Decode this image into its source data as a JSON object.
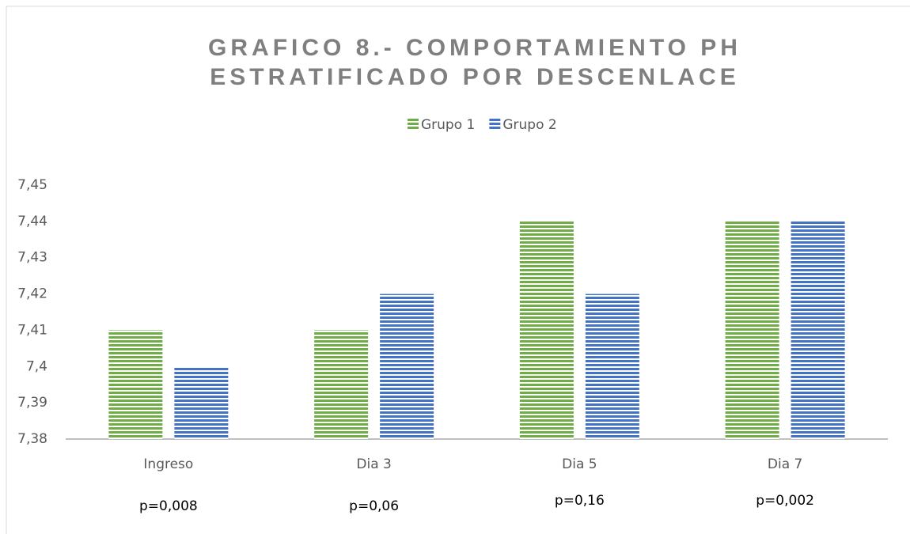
{
  "chart_data": {
    "type": "bar",
    "title": [
      "GRAFICO 8.- COMPORTAMIENTO PH",
      "ESTRATIFICADO POR DESCENLACE"
    ],
    "categories": [
      "Ingreso",
      "Dia 3",
      "Dia 5",
      "Dia 7"
    ],
    "series": [
      {
        "name": "Grupo 1",
        "color": "#70ad47",
        "values": [
          7.41,
          7.41,
          7.44,
          7.44
        ]
      },
      {
        "name": "Grupo 2",
        "color": "#4472c4",
        "values": [
          7.4,
          7.42,
          7.42,
          7.44
        ]
      }
    ],
    "annotations": [
      "p=0,008",
      "p=0,06",
      "p=0,16",
      "p=0,002"
    ],
    "ylim": [
      7.38,
      7.45
    ],
    "yticks": [
      {
        "value": 7.38,
        "label": "7,38"
      },
      {
        "value": 7.39,
        "label": "7,39"
      },
      {
        "value": 7.4,
        "label": "7,4"
      },
      {
        "value": 7.41,
        "label": "7,41"
      },
      {
        "value": 7.42,
        "label": "7,42"
      },
      {
        "value": 7.43,
        "label": "7,43"
      },
      {
        "value": 7.44,
        "label": "7,44"
      },
      {
        "value": 7.45,
        "label": "7,45"
      }
    ],
    "grid": false,
    "legend": "top"
  }
}
